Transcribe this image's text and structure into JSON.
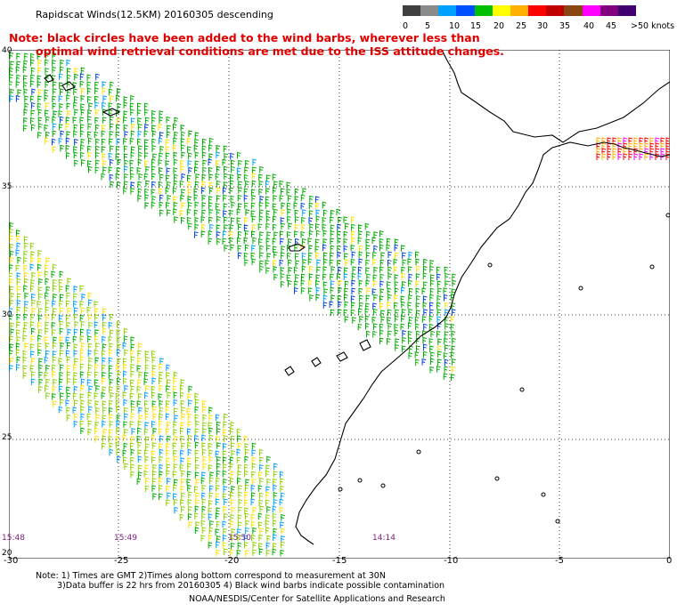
{
  "title": "Rapidscat Winds(12.5KM) 20160305 descending",
  "note_line1": "Note: black circles have been added to the wind barbs, wherever less than",
  "note_line2": "optimal wind retrieval conditions are met due to the ISS attitude changes.",
  "colorbar": {
    "labels": [
      "0",
      "5",
      "10",
      "15",
      "20",
      "25",
      "30",
      "35",
      "40",
      "45",
      ">50 knots"
    ],
    "colors": [
      "#404040",
      "#8a8a8a",
      "#00a0ff",
      "#0050ff",
      "#00c000",
      "#ffff00",
      "#ffb000",
      "#ff0000",
      "#c00000",
      "#8b4513",
      "#ff00ff",
      "#800080",
      "#400070"
    ]
  },
  "map": {
    "lat_labels": [
      "40",
      "35",
      "30",
      "25",
      "20"
    ],
    "lon_labels": [
      "-30",
      "-25",
      "-20",
      "-15",
      "-10",
      "-5",
      "0"
    ],
    "time_labels": [
      "15:48",
      "15:49",
      "15:50",
      "14:14"
    ]
  },
  "footer": {
    "line1": "Note: 1) Times are GMT 2)Times along bottom correspond to measurement at 30N",
    "line2": "3)Data buffer is 22 hrs from 20160305 4) Black wind barbs indicate possible contamination",
    "line3": "NOAA/NESDIS/Center for Satellite Applications and Research"
  }
}
